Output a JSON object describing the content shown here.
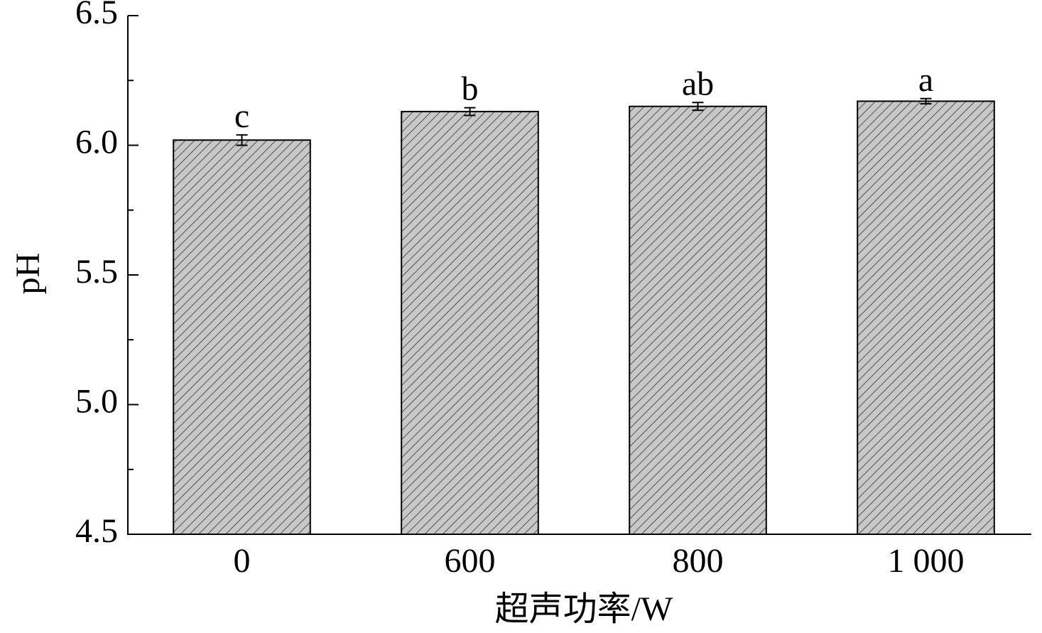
{
  "chart_data": {
    "type": "bar",
    "x_label": "超声功率/W",
    "y_label": "pH",
    "categories": [
      "0",
      "600",
      "800",
      "1 000"
    ],
    "values": [
      6.02,
      6.13,
      6.15,
      6.17
    ],
    "errors": [
      0.02,
      0.015,
      0.015,
      0.01
    ],
    "significance_labels": [
      "c",
      "b",
      "ab",
      "a"
    ],
    "color": "#c8c8c8",
    "hatch": true,
    "ylim": [
      4.5,
      6.5
    ],
    "yticks": [
      4.5,
      {
        "value": 5,
        "label": "5.0"
      },
      5.5,
      {
        "value": 6,
        "label": "6.0"
      },
      6.5
    ],
    "minor_yticks": [
      4.75,
      5.25,
      5.75,
      6.25
    ],
    "grid": false
  }
}
